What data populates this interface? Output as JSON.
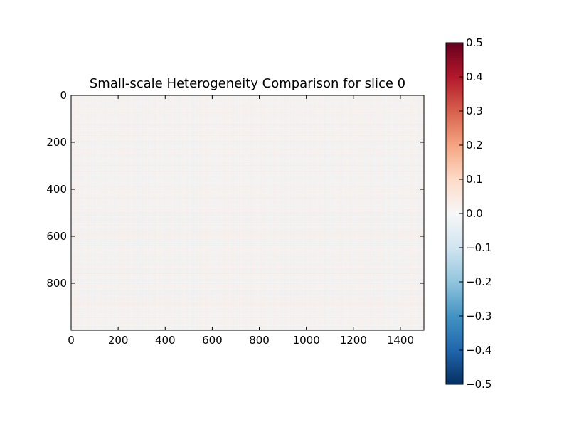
{
  "chart_data": {
    "type": "heatmap",
    "title": "Small-scale Heterogeneity Comparison for slice 0",
    "xlabel": "",
    "ylabel": "",
    "xlim": [
      0,
      1500
    ],
    "ylim": [
      1000,
      0
    ],
    "x_ticks": [
      0,
      200,
      400,
      600,
      800,
      1000,
      1200,
      1400
    ],
    "x_tick_labels": [
      "0",
      "200",
      "400",
      "600",
      "800",
      "1000",
      "1200",
      "1400"
    ],
    "y_ticks": [
      0,
      200,
      400,
      600,
      800
    ],
    "y_tick_labels": [
      "0",
      "200",
      "400",
      "600",
      "800"
    ],
    "colormap": "RdBu_r",
    "colorbar": {
      "vmin": -0.5,
      "vmax": 0.5,
      "ticks": [
        0.5,
        0.4,
        0.3,
        0.2,
        0.1,
        0.0,
        -0.1,
        -0.2,
        -0.3,
        -0.4,
        -0.5
      ],
      "tick_labels": [
        "0.5",
        "0.4",
        "0.3",
        "0.2",
        "0.1",
        "0.0",
        "−0.1",
        "−0.2",
        "−0.3",
        "−0.4",
        "−0.5"
      ]
    },
    "field_value_range": [
      -0.02,
      0.02
    ],
    "grid": false,
    "colors": {
      "near_zero": "#f5f3f2",
      "red_end": "#67001f",
      "blue_end": "#053061"
    }
  }
}
